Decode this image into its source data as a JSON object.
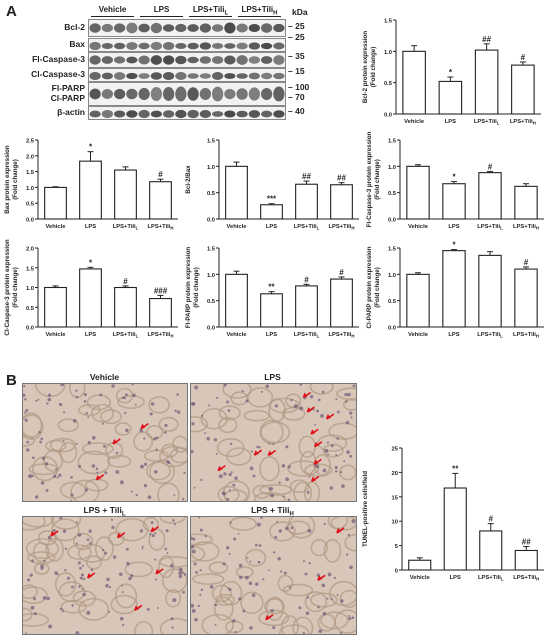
{
  "panel_a": {
    "letter": "A",
    "columns": [
      "Vehicle",
      "LPS",
      "LPS+Tili<sub>L</sub>",
      "LPS+Tili<sub>H</sub>"
    ],
    "column_labels_text": [
      "Vehicle",
      "LPS",
      "LPS+TiliL",
      "LPS+TiliH"
    ],
    "kda_header": "kDa",
    "rows": [
      {
        "label": "Bcl-2",
        "kda": "25"
      },
      {
        "label": "Bax",
        "kda": "25"
      },
      {
        "label": "Fl-Caspase-3",
        "kda": "35"
      },
      {
        "label": "Cl-Caspase-3",
        "kda": "15"
      },
      {
        "label": "Fl-PARP",
        "kda": "100"
      },
      {
        "label": "Cl-PARP",
        "kda": "70"
      },
      {
        "label": "β-actin",
        "kda": "40"
      }
    ]
  },
  "panel_b": {
    "letter": "B",
    "images": [
      {
        "title": "Vehicle"
      },
      {
        "title": "LPS"
      },
      {
        "title": "LPS + Tili",
        "sub": "L"
      },
      {
        "title": "LPS + Tili",
        "sub": "H"
      }
    ]
  },
  "chart_data": [
    {
      "type": "bar",
      "ylabel": "Bcl-2 protein expression",
      "ylabel2": "(Fold change)",
      "categories": [
        "Vehicle",
        "LPS",
        "LPS+TiliL",
        "LPS+TiliH"
      ],
      "values": [
        1.0,
        0.52,
        1.02,
        0.78
      ],
      "errors": [
        0.09,
        0.07,
        0.1,
        0.05
      ],
      "annotations": [
        "",
        "*",
        "##",
        "#"
      ],
      "ylim": [
        0,
        1.5
      ],
      "yticks": [
        0,
        0.5,
        1.0,
        1.5
      ]
    },
    {
      "type": "bar",
      "ylabel": "Bax protein expression",
      "ylabel2": "(Fold change)",
      "categories": [
        "Vehicle",
        "LPS",
        "LPS+TiliL",
        "LPS+TiliH"
      ],
      "values": [
        1.0,
        1.83,
        1.55,
        1.18
      ],
      "errors": [
        0.02,
        0.3,
        0.1,
        0.08
      ],
      "annotations": [
        "",
        "*",
        "",
        "#"
      ],
      "ylim": [
        0,
        2.5
      ],
      "yticks": [
        0,
        0.5,
        1.0,
        1.5,
        2.0,
        2.5
      ]
    },
    {
      "type": "bar",
      "ylabel": "Bcl-2/Bax",
      "ylabel2": "",
      "categories": [
        "Vehicle",
        "LPS",
        "LPS+TiliL",
        "LPS+TiliH"
      ],
      "values": [
        1.0,
        0.27,
        0.66,
        0.65
      ],
      "errors": [
        0.08,
        0.02,
        0.06,
        0.04
      ],
      "annotations": [
        "",
        "***",
        "##",
        "##"
      ],
      "ylim": [
        0,
        1.5
      ],
      "yticks": [
        0,
        0.5,
        1.0,
        1.5
      ]
    },
    {
      "type": "bar",
      "ylabel": "Fl-Caspase-3 protein expression",
      "ylabel2": "(Fold change)",
      "categories": [
        "Vehicle",
        "LPS",
        "LPS+TiliL",
        "LPS+TiliH"
      ],
      "values": [
        1.0,
        0.67,
        0.88,
        0.62
      ],
      "errors": [
        0.03,
        0.04,
        0.02,
        0.05
      ],
      "annotations": [
        "",
        "*",
        "#",
        ""
      ],
      "ylim": [
        0,
        1.5
      ],
      "yticks": [
        0,
        0.5,
        1.0,
        1.5
      ]
    },
    {
      "type": "bar",
      "ylabel": "Cl-Caspase-3 protein expression",
      "ylabel2": "(Fold change)",
      "categories": [
        "Vehicle",
        "LPS",
        "LPS+TiliL",
        "LPS+TiliH"
      ],
      "values": [
        1.0,
        1.47,
        1.0,
        0.72
      ],
      "errors": [
        0.04,
        0.04,
        0.04,
        0.08
      ],
      "annotations": [
        "",
        "*",
        "#",
        "###"
      ],
      "ylim": [
        0,
        2.0
      ],
      "yticks": [
        0,
        0.5,
        1.0,
        1.5,
        2.0
      ]
    },
    {
      "type": "bar",
      "ylabel": "Fl-PARP protein expression",
      "ylabel2": "(Fold change)",
      "categories": [
        "Vehicle",
        "LPS",
        "LPS+TiliL",
        "LPS+TiliH"
      ],
      "values": [
        1.0,
        0.63,
        0.78,
        0.91
      ],
      "errors": [
        0.06,
        0.04,
        0.03,
        0.04
      ],
      "annotations": [
        "",
        "**",
        "#",
        "#"
      ],
      "ylim": [
        0,
        1.5
      ],
      "yticks": [
        0,
        0.5,
        1.0,
        1.5
      ]
    },
    {
      "type": "bar",
      "ylabel": "Cl-PARP protein expression",
      "ylabel2": "(Fold change)",
      "categories": [
        "Vehicle",
        "LPS",
        "LPS+TiliL",
        "LPS+TiliH"
      ],
      "values": [
        1.0,
        1.45,
        1.36,
        1.1
      ],
      "errors": [
        0.03,
        0.02,
        0.07,
        0.04
      ],
      "annotations": [
        "",
        "*",
        "",
        "#"
      ],
      "ylim": [
        0,
        1.5
      ],
      "yticks": [
        0,
        0.5,
        1.0,
        1.5
      ]
    },
    {
      "type": "bar",
      "ylabel": "TUNEL-positive cells/field",
      "ylabel2": "",
      "categories": [
        "Vehicle",
        "LPS",
        "LPS+TiliL",
        "LPS+TiliH"
      ],
      "values": [
        2,
        16.8,
        8,
        4
      ],
      "errors": [
        0.5,
        3,
        1.5,
        0.8
      ],
      "annotations": [
        "",
        "**",
        "#",
        "##"
      ],
      "ylim": [
        0,
        25
      ],
      "yticks": [
        0,
        5,
        10,
        15,
        20,
        25
      ]
    }
  ]
}
